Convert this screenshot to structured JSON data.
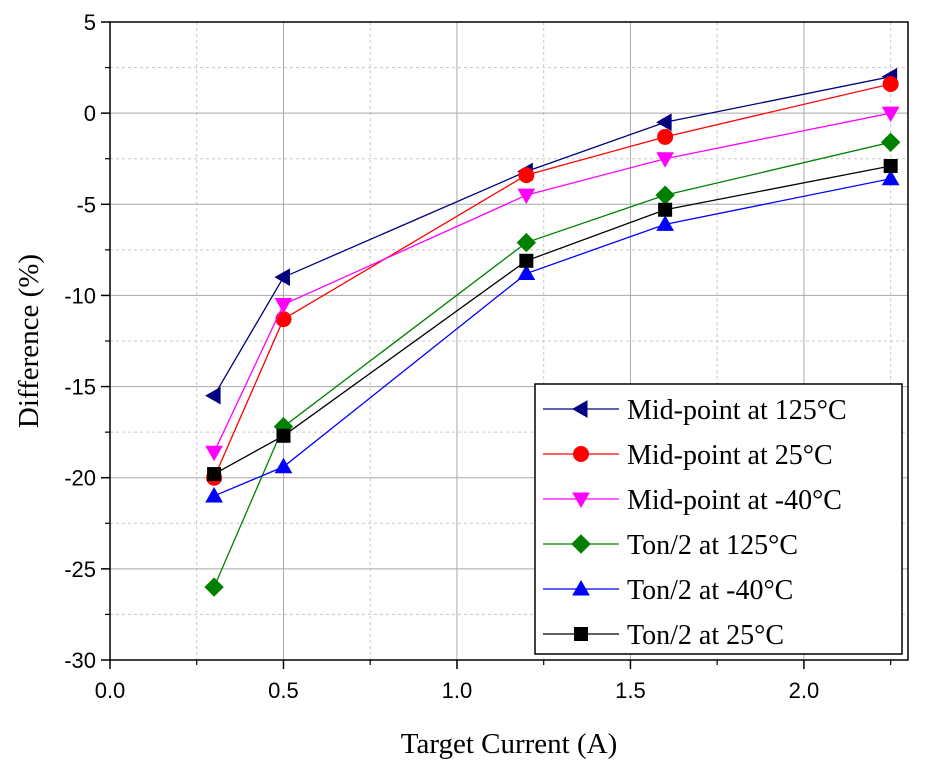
{
  "chart_data": {
    "type": "line",
    "title": "",
    "xlabel": "Target Current (A)",
    "ylabel": "Difference (%)",
    "xlim": [
      0.0,
      2.3
    ],
    "ylim": [
      -30,
      5
    ],
    "x_ticks": [
      0.0,
      0.5,
      1.0,
      1.5,
      2.0
    ],
    "x_tick_labels": [
      "0.0",
      "0.5",
      "1.0",
      "1.5",
      "2.0"
    ],
    "y_ticks": [
      5,
      0,
      -5,
      -10,
      -15,
      -20,
      -25,
      -30
    ],
    "y_tick_labels": [
      "5",
      "0",
      "-5",
      "-10",
      "-15",
      "-20",
      "-25",
      "-30"
    ],
    "grid": true,
    "legend_position": "bottom-right",
    "x": [
      0.3,
      0.5,
      1.2,
      1.6,
      2.25
    ],
    "series": [
      {
        "name": "Mid-point at 125°C",
        "marker": "triangle-left",
        "color": "#000080",
        "values": [
          -15.5,
          -9.0,
          -3.2,
          -0.5,
          2.0
        ]
      },
      {
        "name": "Mid-point at 25°C",
        "marker": "circle",
        "color": "#ff0000",
        "values": [
          -20.0,
          -11.3,
          -3.4,
          -1.3,
          1.6
        ]
      },
      {
        "name": "Mid-point at -40°C",
        "marker": "triangle-down",
        "color": "#ff00ff",
        "values": [
          -18.6,
          -10.5,
          -4.5,
          -2.5,
          0.0
        ]
      },
      {
        "name": "Ton/2 at 125°C",
        "marker": "diamond",
        "color": "#008000",
        "values": [
          -26.0,
          -17.2,
          -7.1,
          -4.5,
          -1.6
        ]
      },
      {
        "name": "Ton/2 at -40°C",
        "marker": "triangle-up",
        "color": "#0000ff",
        "values": [
          -21.0,
          -19.4,
          -8.8,
          -6.1,
          -3.6
        ]
      },
      {
        "name": "Ton/2 at 25°C",
        "marker": "square",
        "color": "#000000",
        "values": [
          -19.8,
          -17.7,
          -8.1,
          -5.3,
          -2.9
        ]
      }
    ]
  }
}
